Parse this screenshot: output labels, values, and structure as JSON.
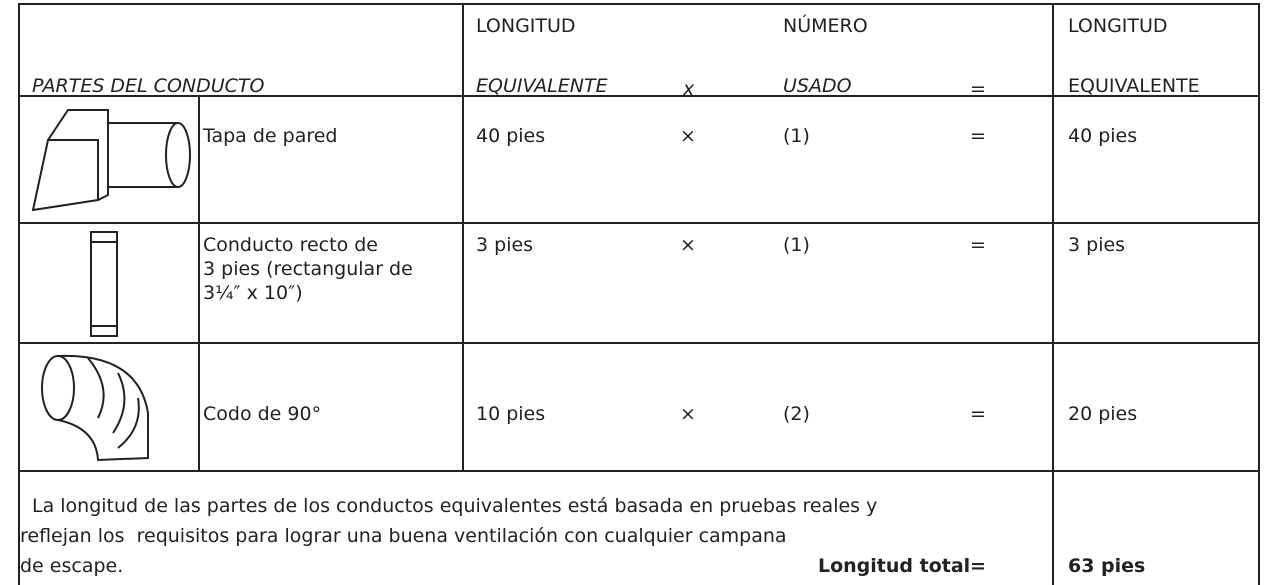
{
  "header": {
    "parts": "PARTES DEL CONDUCTO",
    "length": [
      "LONGITUD",
      "EQUIVALENTE"
    ],
    "times": "x",
    "number": [
      "NÚMERO",
      "USADO"
    ],
    "equals": "=",
    "result": [
      "LONGITUD",
      "EQUIVALENTE"
    ]
  },
  "rows": [
    {
      "part": [
        "Tapa de pared"
      ],
      "length": "40 pies",
      "times": "×",
      "number": "(1)",
      "equals": "=",
      "result": "40 pies"
    },
    {
      "part": [
        "Conducto recto de",
        "3 pies (rectangular de",
        "3¼″ x 10″)"
      ],
      "length": "3 pies",
      "times": "×",
      "number": "(1)",
      "equals": "=",
      "result": "3 pies"
    },
    {
      "part": [
        "Codo de 90°"
      ],
      "length": "10 pies",
      "times": "×",
      "number": "(2)",
      "equals": "=",
      "result": "20 pies"
    }
  ],
  "footer": {
    "note": [
      "La longitud de las partes de los conductos equivalentes está basada en pruebas reales y",
      "reflejan los  requisitos para lograr una buena ventilación con cualquier campana",
      "de escape."
    ],
    "total_label": "Longitud total",
    "equals": "=",
    "total": "63 pies"
  }
}
